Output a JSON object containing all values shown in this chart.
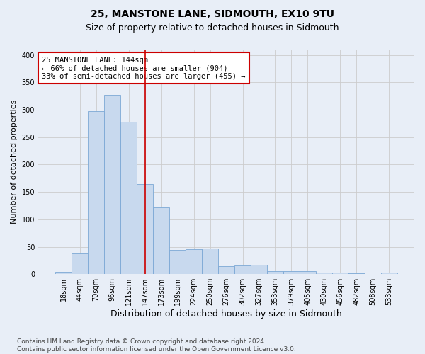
{
  "title": "25, MANSTONE LANE, SIDMOUTH, EX10 9TU",
  "subtitle": "Size of property relative to detached houses in Sidmouth",
  "xlabel": "Distribution of detached houses by size in Sidmouth",
  "ylabel": "Number of detached properties",
  "bin_labels": [
    "18sqm",
    "44sqm",
    "70sqm",
    "96sqm",
    "121sqm",
    "147sqm",
    "173sqm",
    "199sqm",
    "224sqm",
    "250sqm",
    "276sqm",
    "302sqm",
    "327sqm",
    "353sqm",
    "379sqm",
    "405sqm",
    "430sqm",
    "456sqm",
    "482sqm",
    "508sqm",
    "533sqm"
  ],
  "bar_heights": [
    4,
    38,
    298,
    327,
    278,
    165,
    122,
    44,
    45,
    47,
    15,
    16,
    17,
    5,
    6,
    5,
    3,
    3,
    2,
    0,
    3
  ],
  "bar_color": "#c8d9ee",
  "bar_edge_color": "#7ca8d5",
  "property_bin_index": 5,
  "vline_color": "#cc0000",
  "annotation_line1": "25 MANSTONE LANE: 144sqm",
  "annotation_line2": "← 66% of detached houses are smaller (904)",
  "annotation_line3": "33% of semi-detached houses are larger (455) →",
  "annotation_box_color": "white",
  "annotation_box_edge_color": "#cc0000",
  "ylim": [
    0,
    410
  ],
  "yticks": [
    0,
    50,
    100,
    150,
    200,
    250,
    300,
    350,
    400
  ],
  "grid_color": "#cccccc",
  "background_color": "#e8eef7",
  "footnote": "Contains HM Land Registry data © Crown copyright and database right 2024.\nContains public sector information licensed under the Open Government Licence v3.0.",
  "title_fontsize": 10,
  "subtitle_fontsize": 9,
  "ylabel_fontsize": 8,
  "xlabel_fontsize": 9,
  "tick_fontsize": 7,
  "annotation_fontsize": 7.5,
  "footnote_fontsize": 6.5
}
